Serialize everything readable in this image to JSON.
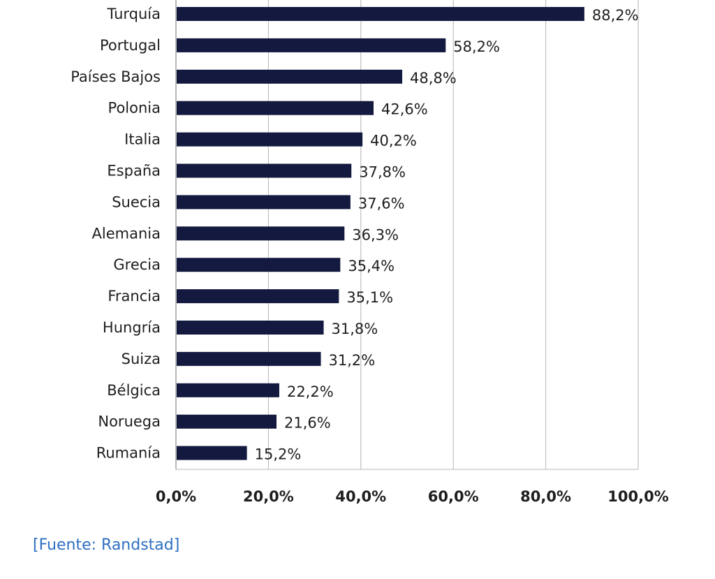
{
  "chart_data": {
    "type": "bar",
    "orientation": "horizontal",
    "categories": [
      "Turquía",
      "Portugal",
      "Países Bajos",
      "Polonia",
      "Italia",
      "España",
      "Suecia",
      "Alemania",
      "Grecia",
      "Francia",
      "Hungría",
      "Suiza",
      "Bélgica",
      "Noruega",
      "Rumanía"
    ],
    "values": [
      88.2,
      58.2,
      48.8,
      42.6,
      40.2,
      37.8,
      37.6,
      36.3,
      35.4,
      35.1,
      31.8,
      31.2,
      22.2,
      21.6,
      15.2
    ],
    "value_labels": [
      "88,2%",
      "58,2%",
      "48,8%",
      "42,6%",
      "40,2%",
      "37,8%",
      "37,6%",
      "36,3%",
      "35,4%",
      "35,1%",
      "31,8%",
      "31,2%",
      "22,2%",
      "21,6%",
      "15,2%"
    ],
    "xlim": [
      0,
      100
    ],
    "xticks": [
      0,
      20,
      40,
      60,
      80,
      100
    ],
    "xtick_labels": [
      "0,0%",
      "20,0%",
      "40,0%",
      "60,0%",
      "80,0%",
      "100,0%"
    ],
    "grid": "vertical",
    "bar_color": "#141a3f",
    "grid_color": "#b4b4b4",
    "axis_color": "#a0a0a0"
  },
  "source": "[Fuente: Randstad]"
}
